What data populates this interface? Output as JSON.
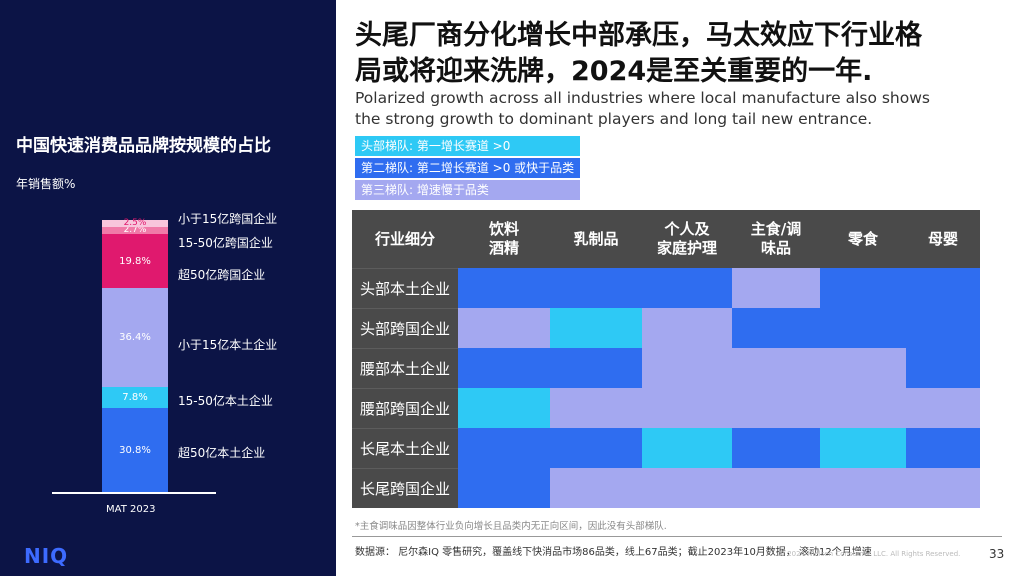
{
  "left": {
    "title": "中国快速消费品品牌按规模的占比",
    "subtitle": "年销售额%",
    "logo": "NIQ"
  },
  "chart_data": {
    "type": "bar",
    "categories": [
      "MAT 2023"
    ],
    "series": [
      {
        "name": "超50亿本土企业",
        "values": [
          30.8
        ],
        "value_label": "30.8%",
        "color": "#2f6df0"
      },
      {
        "name": "15-50亿本土企业",
        "values": [
          7.8
        ],
        "value_label": "7.8%",
        "color": "#2ec9f5"
      },
      {
        "name": "小于15亿本土企业",
        "values": [
          36.4
        ],
        "value_label": "36.4%",
        "color": "#a4a8f0"
      },
      {
        "name": "超50亿跨国企业",
        "values": [
          19.8
        ],
        "value_label": "19.8%",
        "color": "#e0196e"
      },
      {
        "name": "15-50亿跨国企业",
        "values": [
          2.7
        ],
        "value_label": "2.7%",
        "color": "#f07aa8"
      },
      {
        "name": "小于15亿跨国企业",
        "values": [
          2.5
        ],
        "value_label": "2.5%",
        "color": "#f8c6dc"
      }
    ],
    "stacked": true
  },
  "headline": {
    "line1": "头尾厂商分化增长中部承压，马太效应下行业格",
    "line2": "局或将迎来洗牌，2024是至关重要的一年."
  },
  "subtitle": {
    "line1": "Polarized growth across all industries where local manufacture also shows",
    "line2": "the strong growth to dominant players and long tail new entrance."
  },
  "legend": [
    {
      "label": "头部梯队: 第一增长赛道 >0",
      "color": "#2ec9f5"
    },
    {
      "label": "第二梯队: 第二增长赛道 >0 或快于品类",
      "color": "#2f6df0"
    },
    {
      "label": "第三梯队: 增速慢于品类",
      "color": "#a4a8f0"
    }
  ],
  "colors": {
    "t1": "#2ec9f5",
    "t2": "#2f6df0",
    "t3": "#a4a8f0"
  },
  "matrix": {
    "corner": "行业细分",
    "columns": [
      "饮料\n酒精",
      "乳制品",
      "个人及\n家庭护理",
      "主食/调\n味品",
      "零食",
      "母婴"
    ],
    "rows": [
      {
        "label": "头部本土企业",
        "cells": [
          "t2",
          "t2",
          "t2",
          "t3",
          "t2",
          "t2"
        ]
      },
      {
        "label": "头部跨国企业",
        "cells": [
          "t3",
          "t1",
          "t3",
          "t2",
          "t2",
          "t2"
        ]
      },
      {
        "label": "腰部本土企业",
        "cells": [
          "t2",
          "t2",
          "t3",
          "t3",
          "t3",
          "t2"
        ]
      },
      {
        "label": "腰部跨国企业",
        "cells": [
          "t1",
          "t3",
          "t3",
          "t3",
          "t3",
          "t3"
        ]
      },
      {
        "label": "长尾本土企业",
        "cells": [
          "t2",
          "t2",
          "t1",
          "t2",
          "t1",
          "t2"
        ]
      },
      {
        "label": "长尾跨国企业",
        "cells": [
          "t2",
          "t3",
          "t3",
          "t3",
          "t3",
          "t3"
        ]
      }
    ]
  },
  "footnote": "*主食调味品因整体行业负向增长且品类内无正向区间，因此没有头部梯队.",
  "source": "数据源： 尼尔森IQ 零售研究，覆盖线下快消品市场86品类，线上67品类；截止2023年10月数据， 滚动12个月增速",
  "watermark": "© 2024 Nielsen Consumer LLC. All Rights Reserved.",
  "page_number": "33"
}
